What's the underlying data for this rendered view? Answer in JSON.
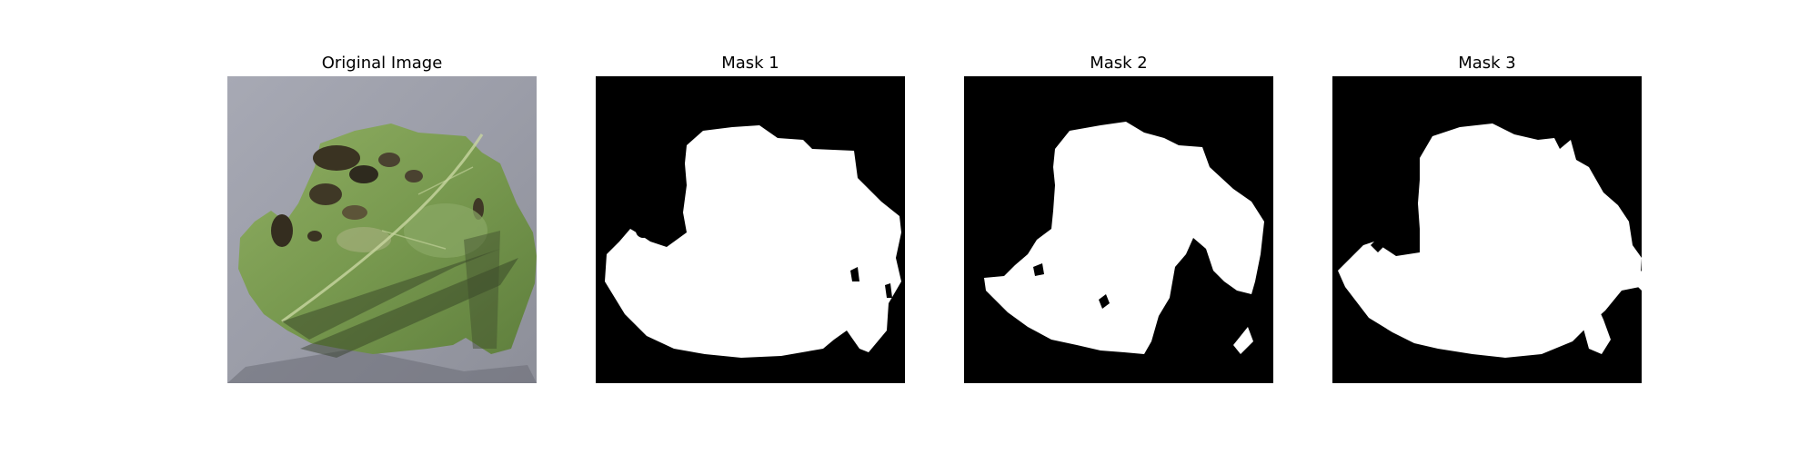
{
  "figure": {
    "panels": [
      {
        "title": "Original Image"
      },
      {
        "title": "Mask 1"
      },
      {
        "title": "Mask 2"
      },
      {
        "title": "Mask 3"
      }
    ],
    "colors": {
      "background": "#ffffff",
      "mask_background": "#000000",
      "mask_foreground": "#ffffff",
      "leaf_green": "#7ea155",
      "surface_gray": "#9a9ca6"
    }
  }
}
